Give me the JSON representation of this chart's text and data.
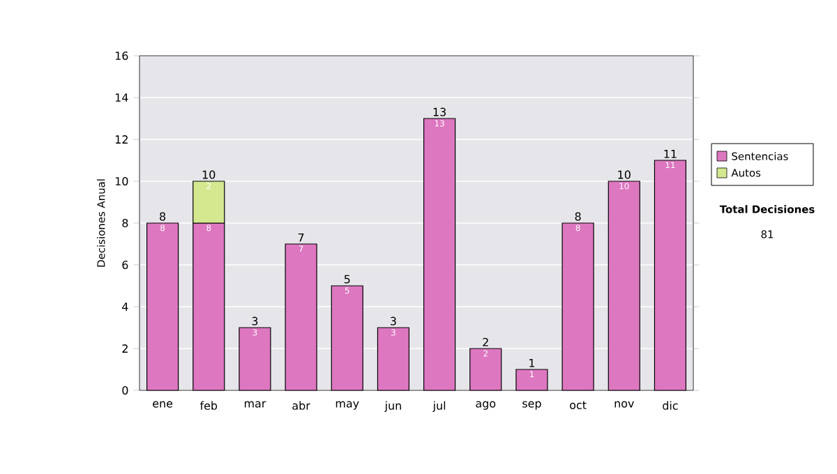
{
  "chart_data": {
    "type": "bar",
    "stacked": true,
    "ylabel": "Decisiones Anual",
    "categories": [
      "ene",
      "feb",
      "mar",
      "abr",
      "may",
      "jun",
      "jul",
      "ago",
      "sep",
      "oct",
      "nov",
      "dic"
    ],
    "series": [
      {
        "name": "Sentencias",
        "color": "#dd77c0",
        "values": [
          8,
          8,
          3,
          7,
          5,
          3,
          13,
          2,
          1,
          8,
          10,
          11
        ]
      },
      {
        "name": "Autos",
        "color": "#d4e890",
        "values": [
          null,
          2,
          null,
          null,
          null,
          null,
          null,
          null,
          null,
          null,
          null,
          null
        ]
      }
    ],
    "totals": [
      "8",
      "10",
      "3",
      "7",
      "5",
      "3",
      "13",
      "2",
      "1",
      "8",
      "10",
      "11"
    ],
    "data_labels": true,
    "ylim": [
      0,
      16
    ],
    "yticks": [
      0,
      2,
      4,
      6,
      8,
      10,
      12,
      14,
      16
    ],
    "grid": "y",
    "legend": "right",
    "annotations": [
      "**Total Decisiones**",
      "81"
    ]
  }
}
